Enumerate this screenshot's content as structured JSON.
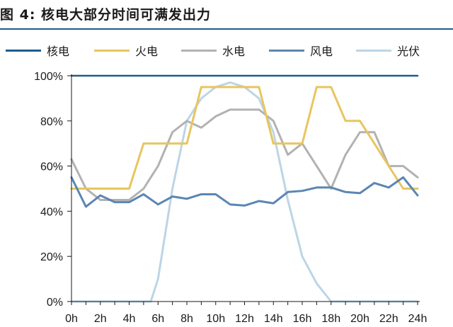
{
  "figure": {
    "title": "图  4:  核电大部分时间可满发出力"
  },
  "chart_data": {
    "type": "line",
    "title": "",
    "xlabel": "",
    "ylabel": "",
    "x": [
      0,
      1,
      2,
      3,
      4,
      5,
      6,
      7,
      8,
      9,
      10,
      11,
      12,
      13,
      14,
      15,
      16,
      17,
      18,
      19,
      20,
      21,
      22,
      23,
      24
    ],
    "x_ticks": [
      0,
      2,
      4,
      6,
      8,
      10,
      12,
      14,
      16,
      18,
      20,
      22,
      24
    ],
    "x_tick_labels": [
      "0h",
      "2h",
      "4h",
      "6h",
      "8h",
      "10h",
      "12h",
      "14h",
      "16h",
      "18h",
      "20h",
      "22h",
      "24h"
    ],
    "xlim": [
      0,
      24
    ],
    "y_ticks": [
      0,
      20,
      40,
      60,
      80,
      100
    ],
    "y_tick_labels": [
      "0%",
      "20%",
      "40%",
      "60%",
      "80%",
      "100%"
    ],
    "ylim": [
      0,
      100
    ],
    "grid": false,
    "legend_position": "top",
    "series": [
      {
        "name": "核电",
        "color": "#1f5c8b",
        "points": [
          [
            0,
            100
          ],
          [
            24,
            100
          ]
        ]
      },
      {
        "name": "火电",
        "color": "#e8c55e",
        "points": [
          [
            0,
            50
          ],
          [
            1,
            50
          ],
          [
            2,
            50
          ],
          [
            3,
            50
          ],
          [
            4,
            50
          ],
          [
            5,
            70
          ],
          [
            6,
            70
          ],
          [
            7,
            70
          ],
          [
            8,
            70
          ],
          [
            9,
            95
          ],
          [
            10,
            95
          ],
          [
            11,
            95
          ],
          [
            12,
            95
          ],
          [
            13,
            95
          ],
          [
            14,
            70
          ],
          [
            15,
            70
          ],
          [
            16,
            70
          ],
          [
            17,
            95
          ],
          [
            18,
            95
          ],
          [
            19,
            80
          ],
          [
            20,
            80
          ],
          [
            21,
            70
          ],
          [
            22,
            60
          ],
          [
            23,
            50
          ],
          [
            24,
            50
          ]
        ]
      },
      {
        "name": "水电",
        "color": "#b2b2b2",
        "points": [
          [
            0,
            63
          ],
          [
            1,
            50
          ],
          [
            2,
            45
          ],
          [
            3,
            45
          ],
          [
            4,
            45
          ],
          [
            5,
            50
          ],
          [
            6,
            60
          ],
          [
            7,
            75
          ],
          [
            8,
            80
          ],
          [
            9,
            77
          ],
          [
            10,
            82
          ],
          [
            11,
            85
          ],
          [
            12,
            85
          ],
          [
            13,
            85
          ],
          [
            14,
            80
          ],
          [
            15,
            65
          ],
          [
            16,
            70
          ],
          [
            17,
            60
          ],
          [
            18,
            50
          ],
          [
            19,
            65
          ],
          [
            20,
            75
          ],
          [
            21,
            75
          ],
          [
            22,
            60
          ],
          [
            23,
            60
          ],
          [
            24,
            55
          ]
        ]
      },
      {
        "name": "风电",
        "color": "#5b86b2",
        "points": [
          [
            0,
            55
          ],
          [
            1,
            42
          ],
          [
            2,
            47
          ],
          [
            3,
            44
          ],
          [
            4,
            44
          ],
          [
            5,
            47.5
          ],
          [
            6,
            43
          ],
          [
            7,
            46.5
          ],
          [
            8,
            45.5
          ],
          [
            9,
            47.5
          ],
          [
            10,
            47.5
          ],
          [
            11,
            43
          ],
          [
            12,
            42.5
          ],
          [
            13,
            44.5
          ],
          [
            14,
            43.5
          ],
          [
            15,
            48.5
          ],
          [
            16,
            49
          ],
          [
            17,
            50.5
          ],
          [
            18,
            50.5
          ],
          [
            19,
            48.5
          ],
          [
            20,
            48
          ],
          [
            21,
            52.5
          ],
          [
            22,
            50.5
          ],
          [
            23,
            55
          ],
          [
            24,
            47
          ]
        ]
      },
      {
        "name": "光伏",
        "color": "#bcd5e6",
        "points": [
          [
            0,
            0
          ],
          [
            5.5,
            0
          ],
          [
            6,
            10
          ],
          [
            7,
            50
          ],
          [
            8,
            80
          ],
          [
            9,
            90
          ],
          [
            10,
            95
          ],
          [
            11,
            97
          ],
          [
            12,
            95
          ],
          [
            13,
            90
          ],
          [
            14,
            75
          ],
          [
            15,
            45
          ],
          [
            16,
            20
          ],
          [
            17,
            8
          ],
          [
            18,
            0
          ],
          [
            24,
            0
          ]
        ]
      }
    ]
  }
}
